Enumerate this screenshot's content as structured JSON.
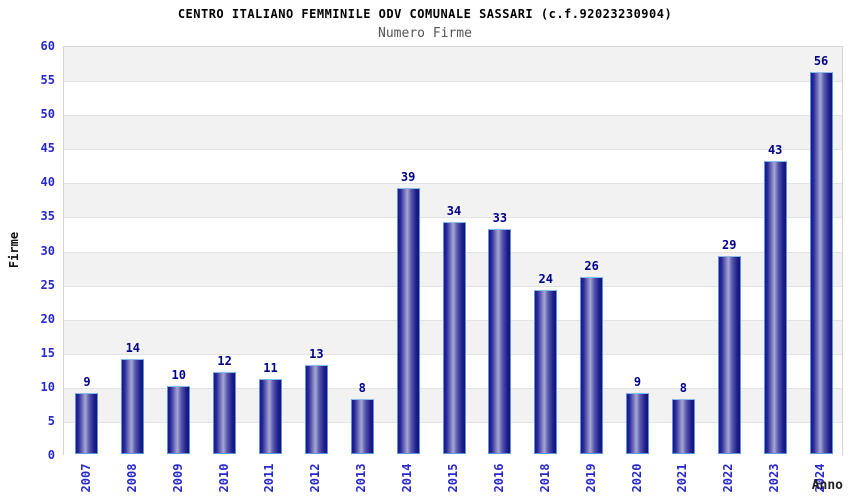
{
  "title": "CENTRO ITALIANO FEMMINILE ODV COMUNALE SASSARI (c.f.92023230904)",
  "subtitle": "Numero Firme",
  "chart_data": {
    "type": "bar",
    "title": "CENTRO ITALIANO FEMMINILE ODV COMUNALE SASSARI (c.f.92023230904)",
    "subtitle": "Numero Firme",
    "categories": [
      "2007",
      "2008",
      "2009",
      "2010",
      "2011",
      "2012",
      "2013",
      "2014",
      "2015",
      "2016",
      "2018",
      "2019",
      "2020",
      "2021",
      "2022",
      "2023",
      "2024"
    ],
    "values": [
      9,
      14,
      10,
      12,
      11,
      13,
      8,
      39,
      34,
      33,
      24,
      26,
      9,
      8,
      29,
      43,
      56
    ],
    "xlabel": "Anno",
    "ylabel": "Firme",
    "ylim": [
      0,
      60
    ],
    "ytick_step": 5,
    "yticks": [
      0,
      5,
      10,
      15,
      20,
      25,
      30,
      35,
      40,
      45,
      50,
      55,
      60
    ],
    "grid": "horizontal-alternating-bands",
    "legend": "none",
    "value_labels": "above-bars",
    "x_tick_rotation_deg": -90
  },
  "colors": {
    "bar_dark": "#181888",
    "bar_light": "#a6a6d4",
    "bar_border": "#5f93dd",
    "value_label": "#00008b",
    "tick_label": "#2828cc",
    "band_gray": "#f2f2f2",
    "band_white": "#ffffff",
    "grid_line": "#e2e2e2",
    "plot_border": "#d4d4d4",
    "title": "#000000",
    "subtitle": "#555555",
    "axis_title": "#111111"
  }
}
